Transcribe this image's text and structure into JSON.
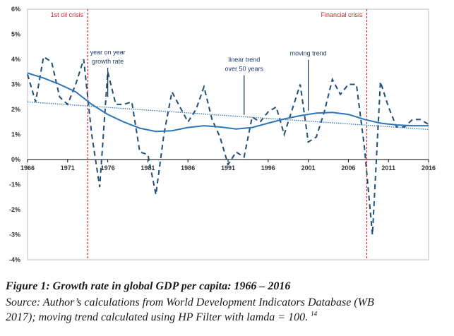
{
  "chart_data": {
    "type": "line",
    "y_unit": "%",
    "ylim": [
      -4,
      6
    ],
    "y_ticks": [
      "6%",
      "5%",
      "4%",
      "3%",
      "2%",
      "1%",
      "0%",
      "-1%",
      "-2%",
      "-3%",
      "-4%"
    ],
    "y_tick_values": [
      6,
      5,
      4,
      3,
      2,
      1,
      0,
      -1,
      -2,
      -3,
      -4
    ],
    "xlim": [
      1966,
      2016
    ],
    "x_ticks": [
      "1966",
      "1971",
      "1976",
      "1981",
      "1986",
      "1991",
      "1996",
      "2001",
      "2006",
      "2011",
      "2016"
    ],
    "x_tick_values": [
      1966,
      1971,
      1976,
      1981,
      1986,
      1991,
      1996,
      2001,
      2006,
      2011,
      2016
    ],
    "grid": false,
    "series": [
      {
        "name": "year on year growth rate",
        "style": "dashed",
        "color": "#1f4e79",
        "x": [
          1966,
          1967,
          1968,
          1969,
          1970,
          1971,
          1972,
          1973,
          1974,
          1975,
          1976,
          1977,
          1978,
          1979,
          1980,
          1981,
          1982,
          1983,
          1984,
          1985,
          1986,
          1987,
          1988,
          1989,
          1990,
          1991,
          1992,
          1993,
          1994,
          1995,
          1996,
          1997,
          1998,
          1999,
          2000,
          2001,
          2002,
          2003,
          2004,
          2005,
          2006,
          2007,
          2008,
          2009,
          2010,
          2011,
          2012,
          2013,
          2014,
          2015,
          2016
        ],
        "y": [
          3.4,
          2.3,
          4.1,
          3.9,
          2.5,
          2.2,
          3.0,
          4.0,
          1.0,
          -1.1,
          3.5,
          2.2,
          2.2,
          2.3,
          0.3,
          0.2,
          -1.4,
          1.0,
          2.7,
          2.1,
          1.5,
          2.0,
          2.9,
          1.6,
          0.9,
          -0.2,
          0.3,
          0.1,
          1.7,
          1.5,
          1.9,
          2.1,
          1.0,
          2.0,
          3.0,
          0.7,
          0.9,
          1.9,
          3.2,
          2.6,
          3.0,
          3.0,
          0.5,
          -3.0,
          3.1,
          2.1,
          1.3,
          1.3,
          1.6,
          1.6,
          1.4
        ]
      },
      {
        "name": "linear trend over 50 years",
        "style": "dotted",
        "color": "#2e75b6",
        "x": [
          1966,
          2016
        ],
        "y": [
          2.3,
          1.2
        ]
      },
      {
        "name": "moving trend",
        "style": "solid",
        "color": "#2e75b6",
        "x": [
          1966,
          1968,
          1970,
          1972,
          1974,
          1976,
          1978,
          1980,
          1982,
          1984,
          1986,
          1988,
          1990,
          1992,
          1994,
          1996,
          1998,
          2000,
          2002,
          2004,
          2006,
          2008,
          2010,
          2012,
          2014,
          2016
        ],
        "y": [
          3.45,
          3.25,
          3.0,
          2.7,
          2.2,
          1.8,
          1.5,
          1.25,
          1.12,
          1.15,
          1.28,
          1.35,
          1.3,
          1.22,
          1.28,
          1.45,
          1.62,
          1.75,
          1.85,
          1.88,
          1.8,
          1.6,
          1.45,
          1.38,
          1.35,
          1.35
        ]
      }
    ],
    "events": [
      {
        "label": "1st oil crisis",
        "x": 1973.5
      },
      {
        "label": "Financial crisis",
        "x": 2008.3
      }
    ],
    "annotations": [
      {
        "lines": [
          "year on year",
          "growth rate"
        ],
        "x": 1976,
        "y": 4.2,
        "arrow_to": [
          1976,
          2.5
        ]
      },
      {
        "lines": [
          "linear trend",
          "over 50 years"
        ],
        "x": 1993,
        "y": 3.9,
        "arrow_to": [
          1993,
          1.78
        ]
      },
      {
        "lines": [
          "moving trend"
        ],
        "x": 2001,
        "y": 4.15,
        "arrow_to": [
          2001,
          1.95
        ]
      }
    ]
  },
  "caption": {
    "title": "Figure 1: Growth rate in global GDP per capita: 1966 – 2016",
    "source_line1": "Source: Author’s calculations from World Development Indicators Database (WB",
    "source_line2": "2017); moving trend calculated using HP Filter with lamda = 100.",
    "footnote": "14"
  },
  "colors": {
    "crisis_line": "#e0202a",
    "axis": "#000000"
  }
}
